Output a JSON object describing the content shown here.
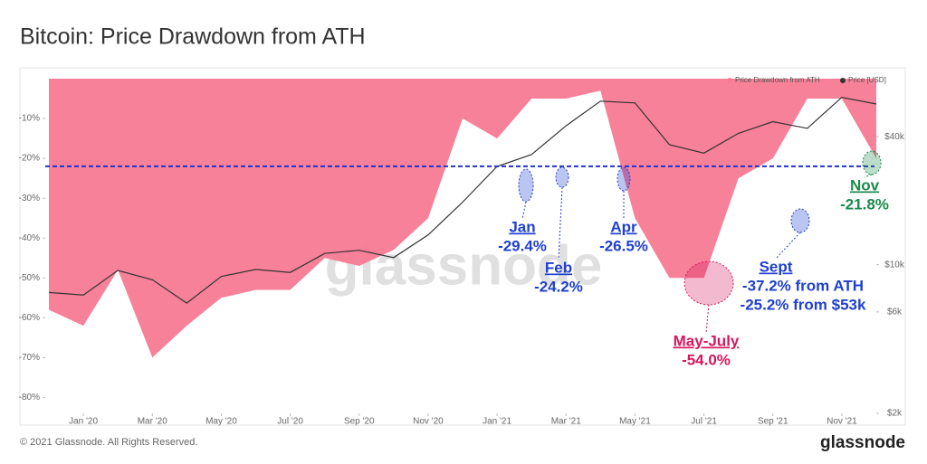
{
  "chart_data": {
    "type": "area",
    "title": "Bitcoin: Price Drawdown from ATH",
    "x": [
      "2019-12",
      "2020-01",
      "2020-02",
      "2020-03",
      "2020-04",
      "2020-05",
      "2020-06",
      "2020-07",
      "2020-08",
      "2020-09",
      "2020-10",
      "2020-11",
      "2020-12",
      "2021-01",
      "2021-02",
      "2021-03",
      "2021-04",
      "2021-05",
      "2021-06",
      "2021-07",
      "2021-08",
      "2021-09",
      "2021-10",
      "2021-11",
      "2021-12"
    ],
    "series": [
      {
        "name": "Price Drawdown from ATH",
        "color": "#f77a92",
        "values": [
          -58,
          -62,
          -48,
          -70,
          -62,
          -55,
          -53,
          -53,
          -45,
          -47,
          -43,
          -35,
          -10,
          -15,
          -5,
          -5,
          -3,
          -35,
          -50,
          -50,
          -25,
          -20,
          -5,
          -5,
          -20
        ]
      },
      {
        "name": "Price [USD]",
        "color": "#333333",
        "axis": "y2",
        "values": [
          7400,
          7200,
          9400,
          8500,
          6600,
          8800,
          9500,
          9200,
          11300,
          11700,
          10800,
          13800,
          19700,
          29000,
          33000,
          45000,
          58800,
          57700,
          36700,
          33500,
          41500,
          47100,
          43800,
          61300,
          57000
        ]
      }
    ],
    "xlim": [
      "2019-12",
      "2021-12"
    ],
    "xticks": [
      {
        "value": "2020-01",
        "label": "Jan '20"
      },
      {
        "value": "2020-03",
        "label": "Mar '20"
      },
      {
        "value": "2020-05",
        "label": "May '20"
      },
      {
        "value": "2020-07",
        "label": "Jul '20"
      },
      {
        "value": "2020-09",
        "label": "Sep '20"
      },
      {
        "value": "2020-11",
        "label": "Nov '20"
      },
      {
        "value": "2021-01",
        "label": "Jan '21"
      },
      {
        "value": "2021-03",
        "label": "Mar '21"
      },
      {
        "value": "2021-05",
        "label": "May '21"
      },
      {
        "value": "2021-07",
        "label": "Jul '21"
      },
      {
        "value": "2021-09",
        "label": "Sep '21"
      },
      {
        "value": "2021-11",
        "label": "Nov '21"
      }
    ],
    "ylim": [
      -84,
      0
    ],
    "yticks": [
      {
        "value": -10,
        "label": "-10%"
      },
      {
        "value": -20,
        "label": "-20%"
      },
      {
        "value": -30,
        "label": "-30%"
      },
      {
        "value": -40,
        "label": "-40%"
      },
      {
        "value": -50,
        "label": "-50%"
      },
      {
        "value": -60,
        "label": "-60%"
      },
      {
        "value": -70,
        "label": "-70%"
      },
      {
        "value": -80,
        "label": "-80%"
      }
    ],
    "y2lim": [
      2000,
      75000
    ],
    "y2log": true,
    "y2ticks": [
      {
        "value": 40000,
        "label": "$40k"
      },
      {
        "value": 10000,
        "label": "$10k"
      },
      {
        "value": 6000,
        "label": "$6k"
      },
      {
        "value": 2000,
        "label": "$2k"
      }
    ],
    "hline": {
      "value": -22,
      "color": "#2233cc"
    },
    "legend": "top-right",
    "watermark": "glassnode",
    "annotations": [
      {
        "label": "Jan",
        "lines": [
          "-29.4%"
        ],
        "color": "#1f3fd0"
      },
      {
        "label": "Feb",
        "lines": [
          "-24.2%"
        ],
        "color": "#1f3fd0"
      },
      {
        "label": "Apr",
        "lines": [
          "-26.5%"
        ],
        "color": "#1f3fd0"
      },
      {
        "label": "May-July",
        "lines": [
          "-54.0%"
        ],
        "color": "#d8175e"
      },
      {
        "label": "Sept",
        "lines": [
          "-37.2% from ATH",
          "-25.2% from $53k"
        ],
        "color": "#1f3fd0"
      },
      {
        "label": "Nov",
        "lines": [
          "-21.8%"
        ],
        "color": "#1a8a4a"
      }
    ]
  },
  "footer": {
    "copyright": "© 2021 Glassnode. All Rights Reserved.",
    "logo": "glassnode"
  }
}
